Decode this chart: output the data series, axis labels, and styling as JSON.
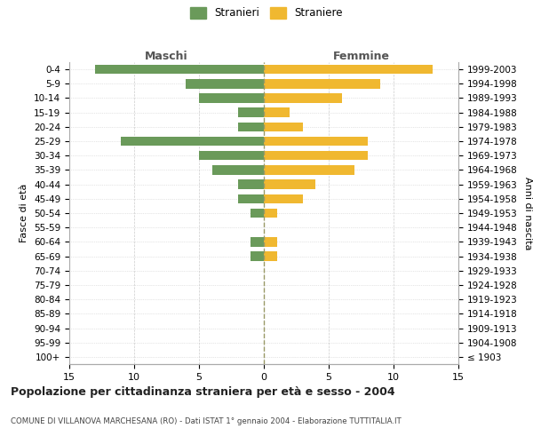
{
  "age_groups": [
    "100+",
    "95-99",
    "90-94",
    "85-89",
    "80-84",
    "75-79",
    "70-74",
    "65-69",
    "60-64",
    "55-59",
    "50-54",
    "45-49",
    "40-44",
    "35-39",
    "30-34",
    "25-29",
    "20-24",
    "15-19",
    "10-14",
    "5-9",
    "0-4"
  ],
  "birth_years": [
    "≤ 1903",
    "1904-1908",
    "1909-1913",
    "1914-1918",
    "1919-1923",
    "1924-1928",
    "1929-1933",
    "1934-1938",
    "1939-1943",
    "1944-1948",
    "1949-1953",
    "1954-1958",
    "1959-1963",
    "1964-1968",
    "1969-1973",
    "1974-1978",
    "1979-1983",
    "1984-1988",
    "1989-1993",
    "1994-1998",
    "1999-2003"
  ],
  "males": [
    0,
    0,
    0,
    0,
    0,
    0,
    0,
    1,
    1,
    0,
    1,
    2,
    2,
    4,
    5,
    11,
    2,
    2,
    5,
    6,
    13
  ],
  "females": [
    0,
    0,
    0,
    0,
    0,
    0,
    0,
    1,
    1,
    0,
    1,
    3,
    4,
    7,
    8,
    8,
    3,
    2,
    6,
    9,
    13
  ],
  "male_color": "#6a9a5a",
  "female_color": "#f0b830",
  "background_color": "#ffffff",
  "grid_color": "#cccccc",
  "title": "Popolazione per cittadinanza straniera per età e sesso - 2004",
  "subtitle": "COMUNE DI VILLANOVA MARCHESANA (RO) - Dati ISTAT 1° gennaio 2004 - Elaborazione TUTTITALIA.IT",
  "xlabel_left": "Maschi",
  "xlabel_right": "Femmine",
  "ylabel_left": "Fasce di età",
  "ylabel_right": "Anni di nascita",
  "legend_stranieri": "Stranieri",
  "legend_straniere": "Straniere",
  "xlim": 15,
  "dashed_line_color": "#999966"
}
